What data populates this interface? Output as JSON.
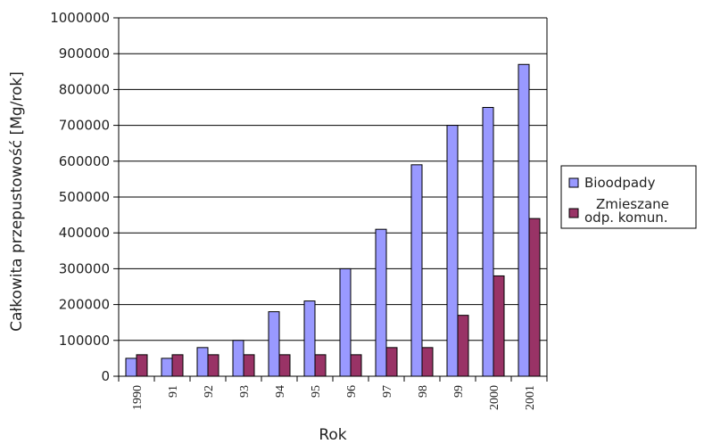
{
  "chart_data": {
    "type": "bar",
    "xlabel": "Rok",
    "ylabel": "Całkowita przepustowość [Mg/rok]",
    "ylim": [
      0,
      1000000
    ],
    "yticks": [
      "0",
      "100000",
      "200000",
      "300000",
      "400000",
      "500000",
      "600000",
      "700000",
      "800000",
      "900000",
      "1000000"
    ],
    "categories": [
      "1990",
      "91",
      "92",
      "93",
      "94",
      "95",
      "96",
      "97",
      "98",
      "99",
      "2000",
      "2001"
    ],
    "grid": "horizontal",
    "legend_position": "right",
    "series": [
      {
        "name": "Bioodpady",
        "color": "#9999ff",
        "values": [
          50000,
          50000,
          80000,
          100000,
          180000,
          210000,
          300000,
          410000,
          590000,
          700000,
          750000,
          870000
        ]
      },
      {
        "name": "Zmieszane odp. komun.",
        "name_lines": [
          "Zmieszane",
          "odp. komun."
        ],
        "color": "#993366",
        "values": [
          60000,
          60000,
          60000,
          60000,
          60000,
          60000,
          60000,
          80000,
          80000,
          170000,
          280000,
          440000
        ]
      }
    ]
  }
}
